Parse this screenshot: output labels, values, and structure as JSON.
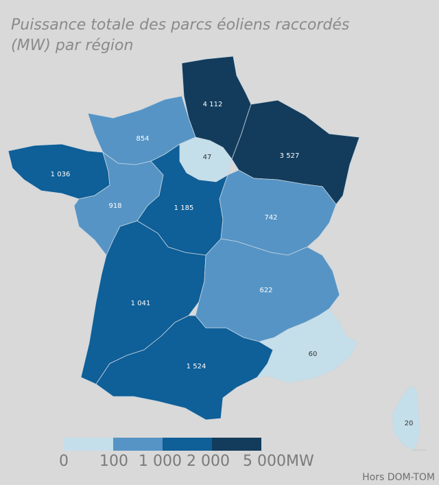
{
  "title": {
    "line1": "Puissance totale des parcs éoliens raccordés",
    "line2": "(MW) par région"
  },
  "colors": {
    "bin0": "#c5dfea",
    "bin1": "#5694c5",
    "bin2": "#0f5f98",
    "bin3": "#133c5c"
  },
  "regions": [
    {
      "name": "Hauts-de-France",
      "value": "4 112"
    },
    {
      "name": "Grand Est",
      "value": "3 527"
    },
    {
      "name": "Normandie",
      "value": "854"
    },
    {
      "name": "Île-de-France",
      "value": "47"
    },
    {
      "name": "Bretagne",
      "value": "1 036"
    },
    {
      "name": "Pays de la Loire",
      "value": "918"
    },
    {
      "name": "Centre-Val de Loire",
      "value": "1 185"
    },
    {
      "name": "Bourgogne-Franche-Comté",
      "value": "742"
    },
    {
      "name": "Nouvelle-Aquitaine",
      "value": "1 041"
    },
    {
      "name": "Auvergne-Rhône-Alpes",
      "value": "622"
    },
    {
      "name": "Occitanie",
      "value": "1 524"
    },
    {
      "name": "Provence-Alpes-Côte d'Azur",
      "value": "60"
    },
    {
      "name": "Corse",
      "value": "20"
    }
  ],
  "legend": {
    "ticks": [
      "0",
      "100",
      "1 000",
      "2 000",
      "5 000MW"
    ]
  },
  "footnote": "Hors DOM-TOM"
}
